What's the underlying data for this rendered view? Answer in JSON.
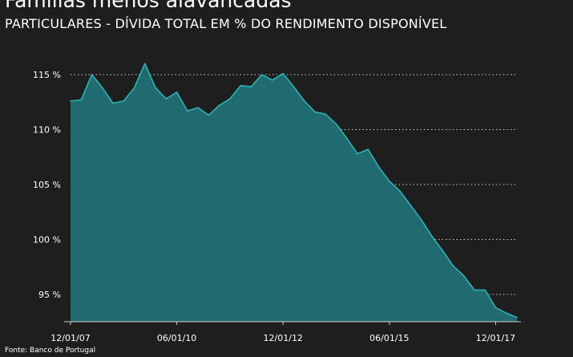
{
  "chart_data": {
    "type": "area",
    "title": "Famílias menos alavancadas",
    "subtitle": "PARTICULARES - DÍVIDA TOTAL EM % DO RENDIMENTO DISPONÍVEL",
    "source": "Fonte: Banco de Portugal",
    "ylim": [
      93,
      117
    ],
    "y_ticks": [
      {
        "value": 95,
        "label": "95 %"
      },
      {
        "value": 100,
        "label": "100 %"
      },
      {
        "value": 105,
        "label": "105 %"
      },
      {
        "value": 110,
        "label": "110 %"
      },
      {
        "value": 115,
        "label": "115 %"
      }
    ],
    "x_ticks": [
      {
        "index": 0,
        "label": "12/01/07"
      },
      {
        "index": 10,
        "label": "06/01/10"
      },
      {
        "index": 20,
        "label": "12/01/12"
      },
      {
        "index": 30,
        "label": "06/01/15"
      },
      {
        "index": 40,
        "label": "12/01/17"
      }
    ],
    "grid": true,
    "colors": {
      "fill": "#1f6b70",
      "line": "#2bb4b8",
      "grid": "#cfcfcf",
      "background": "#1e1e1e"
    },
    "values": [
      112.6,
      112.7,
      115.0,
      113.8,
      112.4,
      112.6,
      113.8,
      116.0,
      113.8,
      112.8,
      113.4,
      111.7,
      112.0,
      111.3,
      112.2,
      112.8,
      114.0,
      113.9,
      115.0,
      114.5,
      115.1,
      113.9,
      112.6,
      111.6,
      111.4,
      110.5,
      109.2,
      107.8,
      108.2,
      106.6,
      105.3,
      104.4,
      103.1,
      101.8,
      100.3,
      99.0,
      97.6,
      96.7,
      95.4,
      95.4,
      93.8,
      93.3,
      92.9
    ]
  }
}
